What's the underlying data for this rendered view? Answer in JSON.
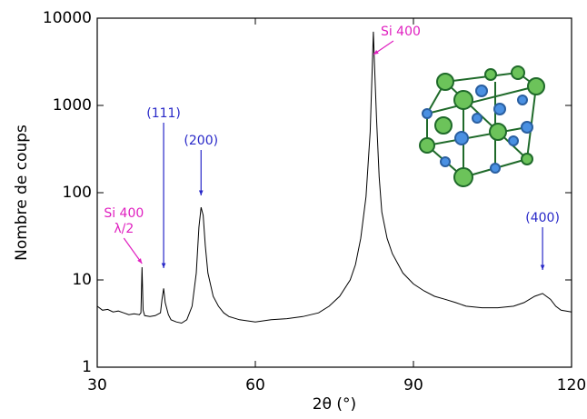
{
  "chart_data": {
    "type": "line",
    "x_label": "2θ (°)",
    "y_label": "Nombre de coups",
    "log_y": true,
    "xlim": [
      30,
      120
    ],
    "xticks": [
      30,
      60,
      90,
      120
    ],
    "ylim": [
      1,
      10000
    ],
    "yticks": [
      1,
      10,
      100,
      1000,
      10000
    ],
    "series": [
      {
        "color": "#000000",
        "x": [
          30,
          31,
          32,
          33,
          34,
          35,
          36,
          37,
          38,
          38.3,
          38.5,
          38.7,
          39,
          40,
          41,
          42,
          42.3,
          42.6,
          42.9,
          43.5,
          44,
          45,
          46,
          47,
          48,
          48.8,
          49.3,
          49.7,
          50.1,
          50.5,
          51,
          52,
          53,
          54,
          55,
          57,
          60,
          63,
          66,
          69,
          72,
          74,
          76,
          78,
          79,
          80,
          81,
          81.8,
          82.2,
          82.4,
          82.6,
          83,
          83.5,
          84,
          85,
          86,
          88,
          90,
          92,
          94,
          96,
          98,
          100,
          103,
          106,
          109,
          111,
          113,
          114.5,
          116,
          117,
          118,
          120
        ],
        "values": [
          5,
          4.5,
          4.6,
          4.3,
          4.4,
          4.2,
          4.0,
          4.1,
          4.0,
          4.2,
          14,
          4.5,
          3.9,
          3.8,
          3.9,
          4.2,
          6,
          8,
          5.5,
          4,
          3.5,
          3.3,
          3.2,
          3.5,
          5,
          12,
          40,
          68,
          55,
          25,
          12,
          6.5,
          5,
          4.2,
          3.8,
          3.5,
          3.3,
          3.5,
          3.6,
          3.8,
          4.2,
          5,
          6.5,
          10,
          15,
          30,
          90,
          500,
          3000,
          7000,
          3000,
          700,
          150,
          60,
          30,
          20,
          12,
          9,
          7.5,
          6.5,
          6,
          5.5,
          5,
          4.8,
          4.8,
          5,
          5.5,
          6.5,
          7,
          6,
          5,
          4.5,
          4.3
        ]
      }
    ],
    "annotations": [
      {
        "lines": [
          "Si 400",
          "λ/2"
        ],
        "x": 38.5,
        "color": "#e020c0"
      },
      {
        "lines": [
          "(111)"
        ],
        "x": 42.6,
        "color": "#2828c8"
      },
      {
        "lines": [
          "(200)"
        ],
        "x": 49.7,
        "color": "#2828c8"
      },
      {
        "lines": [
          "Si 400"
        ],
        "x": 82.4,
        "color": "#e020c0"
      },
      {
        "lines": [
          "(400)"
        ],
        "x": 114.5,
        "color": "#2828c8"
      }
    ]
  }
}
